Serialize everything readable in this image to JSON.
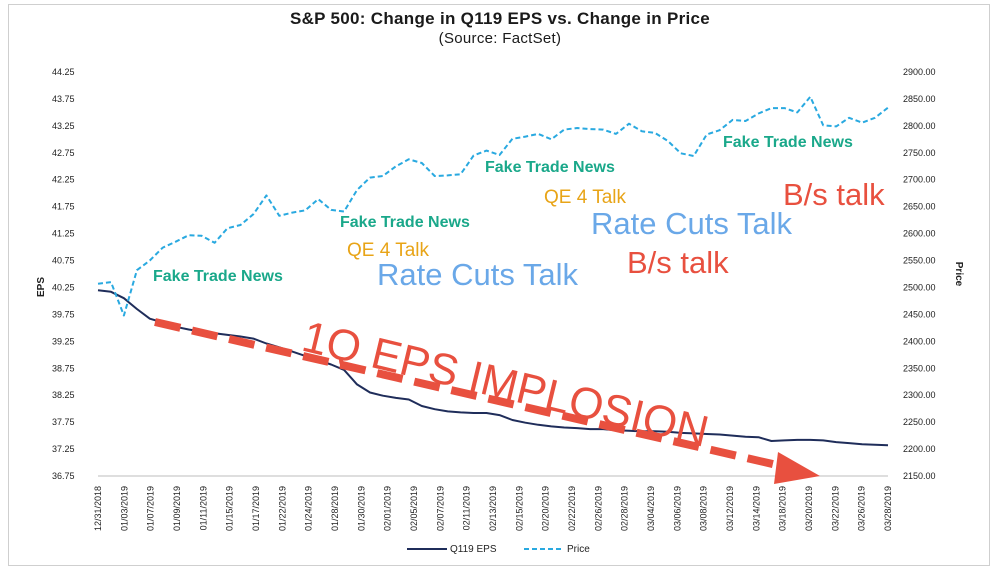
{
  "chart_data": {
    "type": "line",
    "title": "S&P 500: Change in Q119 EPS vs. Change in Price",
    "subtitle": "(Source: FactSet)",
    "ylabel_left": "EPS",
    "ylabel_right": "Price",
    "ylim_left": [
      36.75,
      44.25
    ],
    "ylim_right": [
      2150,
      2900
    ],
    "yticks_left": [
      "44.25",
      "43.75",
      "43.25",
      "42.75",
      "42.25",
      "41.75",
      "41.25",
      "40.75",
      "40.25",
      "39.75",
      "39.25",
      "38.75",
      "38.25",
      "37.75",
      "37.25",
      "36.75"
    ],
    "yticks_right": [
      "2900.00",
      "2850.00",
      "2800.00",
      "2750.00",
      "2700.00",
      "2650.00",
      "2600.00",
      "2550.00",
      "2500.00",
      "2450.00",
      "2400.00",
      "2350.00",
      "2300.00",
      "2250.00",
      "2200.00",
      "2150.00"
    ],
    "x_ticks": [
      "12/31/2018",
      "01/03/2019",
      "01/07/2019",
      "01/09/2019",
      "01/11/2019",
      "01/15/2019",
      "01/17/2019",
      "01/22/2019",
      "01/24/2019",
      "01/28/2019",
      "01/30/2019",
      "02/01/2019",
      "02/05/2019",
      "02/07/2019",
      "02/11/2019",
      "02/13/2019",
      "02/15/2019",
      "02/20/2019",
      "02/22/2019",
      "02/26/2019",
      "02/28/2019",
      "03/04/2019",
      "03/06/2019",
      "03/08/2019",
      "03/12/2019",
      "03/14/2019",
      "03/18/2019",
      "03/20/2019",
      "03/22/2019",
      "03/26/2019",
      "03/28/2019"
    ],
    "x": [
      "12/31/2018",
      "01/02/2019",
      "01/03/2019",
      "01/04/2019",
      "01/07/2019",
      "01/08/2019",
      "01/09/2019",
      "01/10/2019",
      "01/11/2019",
      "01/14/2019",
      "01/15/2019",
      "01/16/2019",
      "01/17/2019",
      "01/18/2019",
      "01/22/2019",
      "01/23/2019",
      "01/24/2019",
      "01/25/2019",
      "01/28/2019",
      "01/29/2019",
      "01/30/2019",
      "01/31/2019",
      "02/01/2019",
      "02/04/2019",
      "02/05/2019",
      "02/06/2019",
      "02/07/2019",
      "02/08/2019",
      "02/11/2019",
      "02/12/2019",
      "02/13/2019",
      "02/14/2019",
      "02/15/2019",
      "02/19/2019",
      "02/20/2019",
      "02/21/2019",
      "02/22/2019",
      "02/25/2019",
      "02/26/2019",
      "02/27/2019",
      "02/28/2019",
      "03/01/2019",
      "03/04/2019",
      "03/05/2019",
      "03/06/2019",
      "03/07/2019",
      "03/08/2019",
      "03/11/2019",
      "03/12/2019",
      "03/13/2019",
      "03/14/2019",
      "03/15/2019",
      "03/18/2019",
      "03/19/2019",
      "03/20/2019",
      "03/21/2019",
      "03/22/2019",
      "03/25/2019",
      "03/26/2019",
      "03/27/2019",
      "03/28/2019",
      "03/29/2019"
    ],
    "series": [
      {
        "name": "Q119 EPS",
        "color": "#1f2d5a",
        "style": "solid",
        "axis": "left",
        "values": [
          40.2,
          40.17,
          40.05,
          39.85,
          39.67,
          39.6,
          39.52,
          39.47,
          39.43,
          39.4,
          39.37,
          39.34,
          39.3,
          39.21,
          39.14,
          39.06,
          38.98,
          38.9,
          38.82,
          38.72,
          38.45,
          38.3,
          38.24,
          38.2,
          38.17,
          38.05,
          37.99,
          37.95,
          37.93,
          37.92,
          37.92,
          37.88,
          37.79,
          37.74,
          37.7,
          37.67,
          37.65,
          37.64,
          37.62,
          37.62,
          37.6,
          37.59,
          37.58,
          37.58,
          37.57,
          37.55,
          37.54,
          37.53,
          37.52,
          37.5,
          37.48,
          37.47,
          37.4,
          37.41,
          37.42,
          37.42,
          37.41,
          37.38,
          37.36,
          37.34,
          37.33,
          37.32
        ]
      },
      {
        "name": "Price",
        "color": "#29a9e0",
        "style": "dashed",
        "axis": "right",
        "values": [
          2507,
          2510,
          2448,
          2532,
          2550,
          2574,
          2585,
          2597,
          2596,
          2583,
          2610,
          2616,
          2636,
          2671,
          2633,
          2639,
          2643,
          2664,
          2644,
          2641,
          2681,
          2704,
          2707,
          2725,
          2738,
          2731,
          2707,
          2708,
          2710,
          2745,
          2754,
          2746,
          2776,
          2780,
          2785,
          2775,
          2793,
          2796,
          2794,
          2793,
          2785,
          2804,
          2790,
          2787,
          2772,
          2749,
          2744,
          2784,
          2792,
          2811,
          2809,
          2823,
          2833,
          2833,
          2825,
          2854,
          2801,
          2799,
          2815,
          2806,
          2815,
          2834
        ]
      }
    ],
    "legend": {
      "placement": "bottom-center",
      "entries": [
        "Q119 EPS",
        "Price"
      ]
    },
    "grid": false,
    "annotations": [
      {
        "text": "Fake Trade News",
        "color": "#1aa88a"
      },
      {
        "text": "Fake Trade News",
        "color": "#1aa88a"
      },
      {
        "text": "Fake Trade News",
        "color": "#1aa88a"
      },
      {
        "text": "Fake Trade News",
        "color": "#1aa88a"
      },
      {
        "text": "QE 4 Talk",
        "color": "#e8a417"
      },
      {
        "text": "QE 4 Talk",
        "color": "#e8a417"
      },
      {
        "text": "Rate Cuts Talk",
        "color": "#6aa8e8"
      },
      {
        "text": "Rate Cuts Talk",
        "color": "#6aa8e8"
      },
      {
        "text": "B/s talk",
        "color": "#e8503f"
      },
      {
        "text": "B/s talk",
        "color": "#e8503f"
      },
      {
        "text": "1Q EPS IMPLOSION",
        "color": "#e8503f"
      }
    ]
  }
}
